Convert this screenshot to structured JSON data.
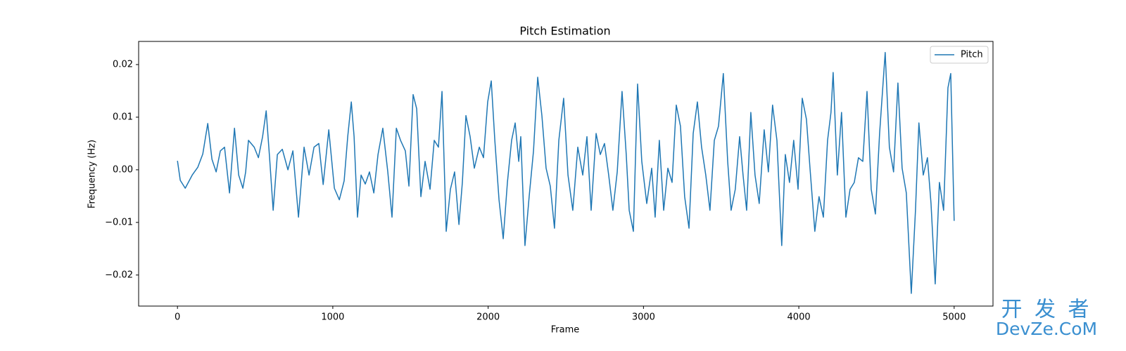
{
  "chart_data": {
    "type": "line",
    "title": "Pitch Estimation",
    "x_label": "Frame",
    "y_label": "Frequency (Hz)",
    "xlim": [
      -250,
      5250
    ],
    "ylim": [
      -0.0259,
      0.0244
    ],
    "xticks": [
      0,
      1000,
      2000,
      3000,
      4000,
      5000
    ],
    "yticks": [
      {
        "value": -0.02,
        "label": "−0.02"
      },
      {
        "value": -0.01,
        "label": "−0.01"
      },
      {
        "value": 0,
        "label": "0.00"
      },
      {
        "value": 0.01,
        "label": "0.01"
      },
      {
        "value": 0.02,
        "label": "0.02"
      }
    ],
    "grid": false,
    "legend": "upper right",
    "series": [
      {
        "name": "Pitch",
        "color": "#1f77b4",
        "x": [
          0,
          18,
          50,
          95,
          131,
          163,
          195,
          222,
          249,
          276,
          303,
          335,
          367,
          394,
          421,
          439,
          457,
          494,
          521,
          548,
          571,
          593,
          616,
          643,
          675,
          711,
          743,
          779,
          815,
          847,
          879,
          910,
          938,
          974,
          1010,
          1042,
          1073,
          1096,
          1119,
          1137,
          1159,
          1182,
          1209,
          1236,
          1264,
          1291,
          1322,
          1354,
          1381,
          1409,
          1436,
          1467,
          1490,
          1517,
          1540,
          1567,
          1594,
          1626,
          1653,
          1680,
          1703,
          1730,
          1757,
          1784,
          1812,
          1834,
          1857,
          1884,
          1911,
          1943,
          1970,
          1997,
          2020,
          2043,
          2070,
          2097,
          2124,
          2151,
          2174,
          2197,
          2210,
          2237,
          2264,
          2292,
          2319,
          2346,
          2373,
          2400,
          2427,
          2455,
          2486,
          2514,
          2545,
          2577,
          2609,
          2636,
          2663,
          2695,
          2722,
          2749,
          2776,
          2803,
          2831,
          2862,
          2889,
          2908,
          2935,
          2962,
          2989,
          3021,
          3053,
          3075,
          3102,
          3130,
          3157,
          3184,
          3211,
          3238,
          3265,
          3293,
          3320,
          3347,
          3374,
          3401,
          3428,
          3456,
          3483,
          3514,
          3542,
          3564,
          3591,
          3619,
          3641,
          3664,
          3691,
          3718,
          3745,
          3777,
          3804,
          3831,
          3859,
          3890,
          3913,
          3940,
          3967,
          3995,
          4022,
          4049,
          4072,
          4103,
          4130,
          4158,
          4185,
          4207,
          4221,
          4248,
          4275,
          4303,
          4330,
          4357,
          4384,
          4412,
          4439,
          4466,
          4493,
          4520,
          4556,
          4583,
          4610,
          4638,
          4665,
          4692,
          4724,
          4751,
          4773,
          4801,
          4828,
          4851,
          4878,
          4905,
          4932,
          4960,
          4978,
          5000
        ],
        "values": [
          0.0017,
          -0.002,
          -0.0035,
          -0.001,
          0.0005,
          0.003,
          0.0088,
          0.002,
          -0.0004,
          0.0036,
          0.0043,
          -0.0044,
          0.0079,
          -0.001,
          -0.0035,
          -0.0004,
          0.0056,
          0.0043,
          0.0023,
          0.0063,
          0.0112,
          0.0023,
          -0.0077,
          0.0029,
          0.0039,
          0,
          0.0036,
          -0.009,
          0.0043,
          -0.001,
          0.0043,
          0.005,
          -0.0028,
          0.0076,
          -0.0035,
          -0.0057,
          -0.0021,
          0.0063,
          0.0129,
          0.0063,
          -0.009,
          -0.001,
          -0.0027,
          -0.0004,
          -0.0044,
          0.0029,
          0.0079,
          -0.0004,
          -0.009,
          0.0079,
          0.0056,
          0.0036,
          -0.0031,
          0.0143,
          0.0116,
          -0.0051,
          0.0016,
          -0.0037,
          0.0056,
          0.0043,
          0.0149,
          -0.0117,
          -0.0037,
          -0.0004,
          -0.0104,
          -0.0024,
          0.0103,
          0.0063,
          0.0003,
          0.0043,
          0.0023,
          0.0129,
          0.0169,
          0.0056,
          -0.0057,
          -0.0131,
          -0.0024,
          0.0056,
          0.0089,
          0.0016,
          0.0063,
          -0.0144,
          -0.0051,
          0.0036,
          0.0176,
          0.0103,
          0.0003,
          -0.0031,
          -0.0111,
          0.0056,
          0.0136,
          -0.001,
          -0.0077,
          0.0043,
          -0.001,
          0.0063,
          -0.0077,
          0.0069,
          0.0029,
          0.005,
          -0.001,
          -0.0077,
          -0.0004,
          0.0149,
          0.0029,
          -0.0077,
          -0.0117,
          0.0163,
          0.0016,
          -0.0064,
          0.0003,
          -0.009,
          0.0056,
          -0.0077,
          0.0003,
          -0.0024,
          0.0123,
          0.0083,
          -0.0051,
          -0.0111,
          0.0069,
          0.0129,
          0.0043,
          -0.001,
          -0.0077,
          0.0056,
          0.0083,
          0.0183,
          0.0016,
          -0.0077,
          -0.0037,
          0.0063,
          -0.001,
          -0.0077,
          0.0109,
          -0.001,
          -0.0064,
          0.0076,
          -0.0004,
          0.0123,
          0.0056,
          -0.0144,
          0.0029,
          -0.0024,
          0.0056,
          -0.0037,
          0.0136,
          0.0096,
          0.0003,
          -0.0117,
          -0.0051,
          -0.009,
          0.0056,
          0.0109,
          0.0185,
          -0.001,
          0.0109,
          -0.009,
          -0.0037,
          -0.0024,
          0.0023,
          0.0016,
          0.0149,
          -0.0037,
          -0.0084,
          0.0069,
          0.0223,
          0.0043,
          -0.0004,
          0.0165,
          0.0003,
          -0.0044,
          -0.0235,
          -0.0077,
          0.0089,
          -0.001,
          0.0023,
          -0.0064,
          -0.0217,
          -0.0024,
          -0.0077,
          0.0156,
          0.0183,
          -0.0097
        ]
      }
    ]
  },
  "watermark": {
    "line1": "开 发 者",
    "line2": "DevZe.CoM"
  }
}
